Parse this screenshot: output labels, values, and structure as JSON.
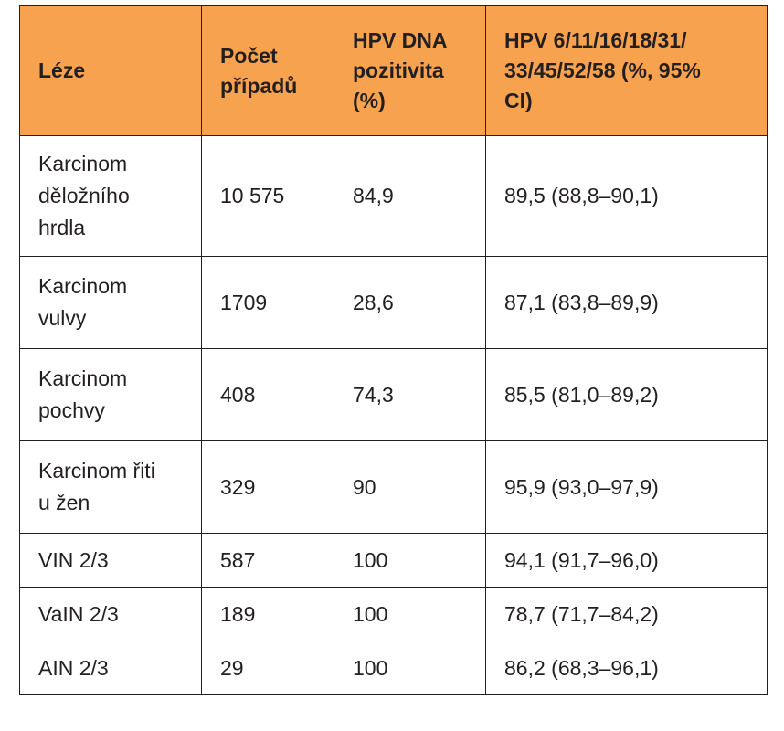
{
  "table": {
    "headers": [
      "Léze",
      "Počet případů",
      "HPV DNA pozitivita (%)",
      "HPV 6/11/16/18/31/ 33/45/52/58 (%, 95% CI)"
    ],
    "rows": [
      [
        "Karcinom děložního hrdla",
        "10 575",
        "84,9",
        "89,5 (88,8–90,1)"
      ],
      [
        "Karcinom vulvy",
        "1709",
        "28,6",
        "87,1 (83,8–89,9)"
      ],
      [
        "Karcinom pochvy",
        "408",
        "74,3",
        "85,5 (81,0–89,2)"
      ],
      [
        "Karcinom řiti u žen",
        "329",
        "90",
        "95,9 (93,0–97,9)"
      ],
      [
        "VIN 2/3",
        "587",
        "100",
        "94,1 (91,7–96,0)"
      ],
      [
        "VaIN 2/3",
        "189",
        "100",
        "78,7 (71,7–84,2)"
      ],
      [
        "AIN 2/3",
        "29",
        "100",
        "86,2 (68,3–96,1)"
      ]
    ]
  },
  "colors": {
    "header_background": "#f7a24f",
    "text": "#231f20",
    "border": "#231f20"
  }
}
